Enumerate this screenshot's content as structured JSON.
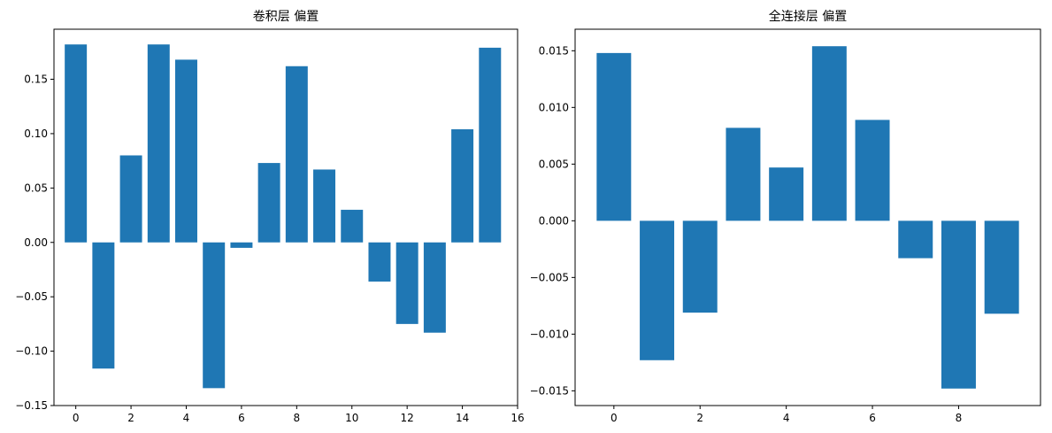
{
  "chart_data": [
    {
      "type": "bar",
      "title": "卷积层 偏置",
      "xlabel": "",
      "ylabel": "",
      "color": "#1f77b4",
      "x": [
        0,
        1,
        2,
        3,
        4,
        5,
        6,
        7,
        8,
        9,
        10,
        11,
        12,
        13,
        14,
        15
      ],
      "values": [
        0.182,
        -0.116,
        0.08,
        0.182,
        0.168,
        -0.134,
        -0.005,
        0.073,
        0.162,
        0.067,
        0.03,
        -0.036,
        -0.075,
        -0.083,
        0.104,
        0.179
      ],
      "xlim": [
        -0.79,
        16.0
      ],
      "ylim": [
        -0.15,
        0.196
      ],
      "xticks": [
        0,
        2,
        4,
        6,
        8,
        10,
        12,
        14,
        16
      ],
      "xtick_labels": [
        "0",
        "2",
        "4",
        "6",
        "8",
        "10",
        "12",
        "14",
        "16"
      ],
      "yticks": [
        -0.15,
        -0.1,
        -0.05,
        0.0,
        0.05,
        0.1,
        0.15
      ],
      "ytick_labels": [
        "−0.15",
        "−0.10",
        "−0.05",
        "0.00",
        "0.05",
        "0.10",
        "0.15"
      ],
      "grid": false
    },
    {
      "type": "bar",
      "title": "全连接层 偏置",
      "xlabel": "",
      "ylabel": "",
      "color": "#1f77b4",
      "x": [
        0,
        1,
        2,
        3,
        4,
        5,
        6,
        7,
        8,
        9
      ],
      "values": [
        0.0148,
        -0.0123,
        -0.0081,
        0.0082,
        0.0047,
        0.0154,
        0.0089,
        -0.0033,
        -0.0148,
        -0.0082
      ],
      "xlim": [
        -0.9,
        9.9
      ],
      "ylim": [
        -0.0163,
        0.0169
      ],
      "xticks": [
        0,
        2,
        4,
        6,
        8
      ],
      "xtick_labels": [
        "0",
        "2",
        "4",
        "6",
        "8"
      ],
      "yticks": [
        -0.015,
        -0.01,
        -0.005,
        0.0,
        0.005,
        0.01,
        0.015
      ],
      "ytick_labels": [
        "−0.015",
        "−0.010",
        "−0.005",
        "0.000",
        "0.005",
        "0.010",
        "0.015"
      ],
      "grid": false
    }
  ]
}
